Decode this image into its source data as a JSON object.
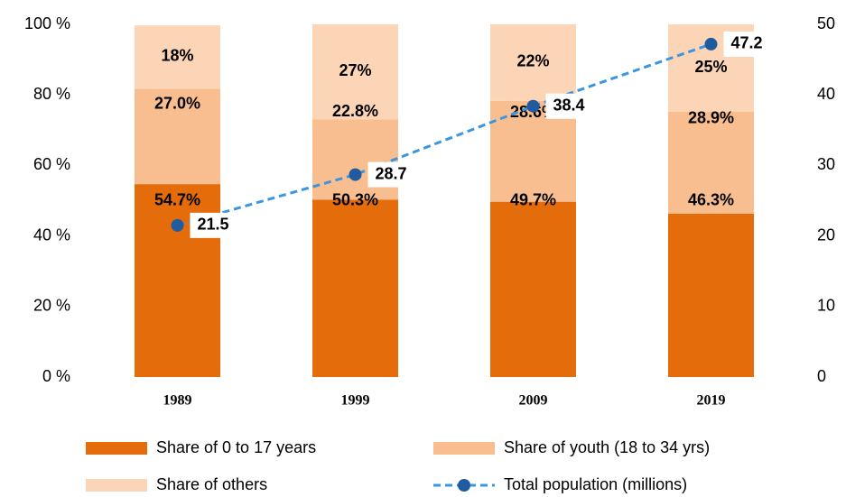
{
  "chart_data": {
    "type": "bar",
    "stacked": true,
    "categories": [
      "1989",
      "1999",
      "2009",
      "2019"
    ],
    "series": [
      {
        "name": "Share of 0 to 17 years",
        "color": "#e46c0a",
        "values": [
          54.7,
          50.3,
          49.7,
          46.3
        ],
        "value_labels": [
          "54.7%",
          "50.3%",
          "49.7%",
          "46.3%"
        ]
      },
      {
        "name": "Share of youth (18 to 34 yrs)",
        "color": "#f9be8f",
        "values": [
          27.0,
          22.8,
          28.6,
          28.9
        ],
        "value_labels": [
          "27.0%",
          "22.8%",
          "28.6%",
          "28.9%"
        ]
      },
      {
        "name": "Share of others",
        "color": "#fbd5b5",
        "values": [
          18,
          27,
          22,
          25
        ],
        "value_labels": [
          "18%",
          "27%",
          "22%",
          "25%"
        ]
      },
      {
        "name": "Total population (millions)",
        "type": "line",
        "axis": "y2",
        "color": "#3a96e0",
        "marker_color": "#1f5b9e",
        "dashed": true,
        "values": [
          21.5,
          28.7,
          38.4,
          47.2
        ]
      }
    ],
    "ylim": [
      0,
      100
    ],
    "yticks": [
      {
        "value": 0,
        "label": "0 %"
      },
      {
        "value": 20,
        "label": "20 %"
      },
      {
        "value": 40,
        "label": "40 %"
      },
      {
        "value": 60,
        "label": "60 %"
      },
      {
        "value": 80,
        "label": "80 %"
      },
      {
        "value": 100,
        "label": "100 %"
      }
    ],
    "y2lim": [
      0,
      50
    ],
    "y2ticks": [
      0,
      10,
      20,
      30,
      40,
      50
    ],
    "legend": "bottom"
  }
}
